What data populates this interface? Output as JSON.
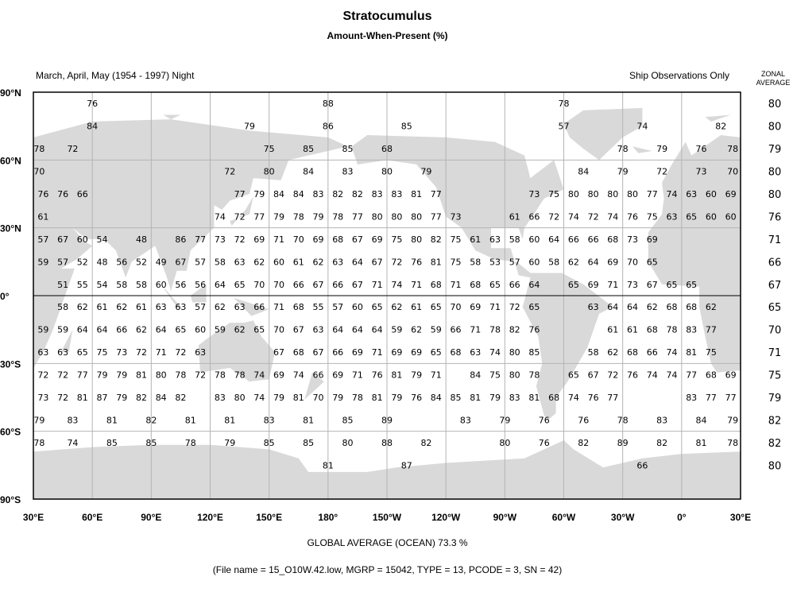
{
  "header": {
    "title": "Stratocumulus",
    "subtitle": "Amount-When-Present (%)",
    "period": "March, April, May (1954 - 1997) Night",
    "source": "Ship Observations Only",
    "zonal_header": [
      "ZONAL",
      "AVERAGE"
    ]
  },
  "axes": {
    "lat_labels": [
      {
        "lat": 90,
        "label": "90°N"
      },
      {
        "lat": 60,
        "label": "60°N"
      },
      {
        "lat": 30,
        "label": "30°N"
      },
      {
        "lat": 0,
        "label": "0°"
      },
      {
        "lat": -30,
        "label": "30°S"
      },
      {
        "lat": -60,
        "label": "60°S"
      },
      {
        "lat": -90,
        "label": "90°S"
      }
    ],
    "lon_labels": [
      "30°E",
      "60°E",
      "90°E",
      "120°E",
      "150°E",
      "180°",
      "150°W",
      "120°W",
      "90°W",
      "60°W",
      "30°W",
      "0°",
      "30°E"
    ],
    "lon_start": 30,
    "lon_step": 30,
    "grid_color": "#b4b4b4",
    "land_color": "#d9d9d9"
  },
  "cells": [
    {
      "lat": 85,
      "points": [
        [
          60,
          76
        ],
        [
          180,
          88
        ],
        [
          -60,
          78
        ]
      ]
    },
    {
      "lat": 75,
      "points": [
        [
          60,
          84
        ],
        [
          140,
          79
        ],
        [
          180,
          86
        ],
        [
          -140,
          85
        ],
        [
          -60,
          57
        ],
        [
          -20,
          74
        ],
        [
          20,
          82
        ]
      ]
    },
    {
      "lat": 65,
      "points": [
        [
          33,
          78
        ],
        [
          50,
          72
        ],
        [
          150,
          75
        ],
        [
          170,
          85
        ],
        [
          -170,
          85
        ],
        [
          -150,
          68
        ],
        [
          -30,
          78
        ],
        [
          -10,
          79
        ],
        [
          10,
          76
        ],
        [
          26,
          78
        ]
      ]
    },
    {
      "lat": 55,
      "points": [
        [
          33,
          70
        ],
        [
          130,
          72
        ],
        [
          150,
          80
        ],
        [
          170,
          84
        ],
        [
          -170,
          83
        ],
        [
          -150,
          80
        ],
        [
          -130,
          79
        ],
        [
          -50,
          84
        ],
        [
          -30,
          79
        ],
        [
          -10,
          72
        ],
        [
          10,
          73
        ],
        [
          26,
          70
        ]
      ]
    },
    {
      "lat": 45,
      "start_lon": 35,
      "step": 10,
      "values": [
        76,
        76,
        66,
        null,
        null,
        null,
        null,
        null,
        null,
        null,
        77,
        79,
        84,
        84,
        83,
        82,
        82,
        83,
        83,
        81,
        77,
        null,
        null,
        null,
        null,
        73,
        75,
        80,
        80,
        80,
        80,
        77,
        74,
        63,
        60,
        69
      ]
    },
    {
      "lat": 35,
      "start_lon": 35,
      "step": 10,
      "values": [
        61,
        null,
        null,
        null,
        null,
        null,
        null,
        null,
        null,
        74,
        72,
        77,
        79,
        78,
        79,
        78,
        77,
        80,
        80,
        80,
        77,
        73,
        null,
        null,
        61,
        66,
        72,
        74,
        72,
        74,
        76,
        75,
        63,
        65,
        60,
        60
      ]
    },
    {
      "lat": 25,
      "start_lon": 35,
      "step": 10,
      "values": [
        57,
        67,
        60,
        54,
        null,
        48,
        null,
        86,
        77,
        73,
        72,
        69,
        71,
        70,
        69,
        68,
        67,
        69,
        75,
        80,
        82,
        75,
        61,
        63,
        58,
        60,
        64,
        66,
        66,
        68,
        73,
        69,
        null,
        null,
        null,
        null
      ]
    },
    {
      "lat": 15,
      "start_lon": 35,
      "step": 10,
      "values": [
        59,
        57,
        52,
        48,
        56,
        52,
        49,
        67,
        57,
        58,
        63,
        62,
        60,
        61,
        62,
        63,
        64,
        67,
        72,
        76,
        81,
        75,
        58,
        53,
        57,
        60,
        58,
        62,
        64,
        69,
        70,
        65,
        null,
        null,
        null,
        null
      ]
    },
    {
      "lat": 5,
      "start_lon": 35,
      "step": 10,
      "values": [
        null,
        51,
        55,
        54,
        58,
        58,
        60,
        56,
        56,
        64,
        65,
        70,
        70,
        66,
        67,
        66,
        67,
        71,
        74,
        71,
        68,
        71,
        68,
        65,
        66,
        64,
        null,
        65,
        69,
        71,
        73,
        67,
        65,
        65,
        null,
        null
      ]
    },
    {
      "lat": -5,
      "start_lon": 35,
      "step": 10,
      "values": [
        null,
        58,
        62,
        61,
        62,
        61,
        63,
        63,
        57,
        62,
        63,
        66,
        71,
        68,
        55,
        57,
        60,
        65,
        62,
        61,
        65,
        70,
        69,
        71,
        72,
        65,
        null,
        null,
        63,
        64,
        64,
        62,
        68,
        68,
        62,
        null
      ]
    },
    {
      "lat": -15,
      "start_lon": 35,
      "step": 10,
      "values": [
        59,
        59,
        64,
        64,
        66,
        62,
        64,
        65,
        60,
        59,
        62,
        65,
        70,
        67,
        63,
        64,
        64,
        64,
        59,
        62,
        59,
        66,
        71,
        78,
        82,
        76,
        null,
        null,
        null,
        61,
        61,
        68,
        78,
        83,
        77,
        null
      ]
    },
    {
      "lat": -25,
      "start_lon": 35,
      "step": 10,
      "values": [
        63,
        63,
        65,
        75,
        73,
        72,
        71,
        72,
        63,
        null,
        null,
        null,
        67,
        68,
        67,
        66,
        69,
        71,
        69,
        69,
        65,
        68,
        63,
        74,
        80,
        85,
        null,
        null,
        58,
        62,
        68,
        66,
        74,
        81,
        75,
        null
      ]
    },
    {
      "lat": -35,
      "start_lon": 35,
      "step": 10,
      "values": [
        72,
        72,
        77,
        79,
        79,
        81,
        80,
        78,
        72,
        78,
        78,
        74,
        69,
        74,
        66,
        69,
        71,
        76,
        81,
        79,
        71,
        null,
        84,
        75,
        80,
        78,
        null,
        65,
        67,
        72,
        76,
        74,
        74,
        77,
        68,
        69
      ]
    },
    {
      "lat": -45,
      "start_lon": 35,
      "step": 10,
      "values": [
        73,
        72,
        81,
        87,
        79,
        82,
        84,
        82,
        null,
        83,
        80,
        74,
        79,
        81,
        70,
        79,
        78,
        81,
        79,
        76,
        84,
        85,
        81,
        79,
        83,
        81,
        68,
        74,
        76,
        77,
        null,
        null,
        null,
        83,
        77,
        77
      ]
    },
    {
      "lat": -55,
      "points": [
        [
          33,
          79
        ],
        [
          50,
          83
        ],
        [
          70,
          81
        ],
        [
          90,
          82
        ],
        [
          110,
          81
        ],
        [
          130,
          81
        ],
        [
          150,
          83
        ],
        [
          170,
          81
        ],
        [
          -170,
          85
        ],
        [
          -150,
          89
        ],
        [
          -110,
          83
        ],
        [
          -90,
          79
        ],
        [
          -70,
          76
        ],
        [
          -50,
          76
        ],
        [
          -30,
          78
        ],
        [
          -10,
          83
        ],
        [
          10,
          84
        ],
        [
          26,
          79
        ]
      ]
    },
    {
      "lat": -65,
      "points": [
        [
          33,
          78
        ],
        [
          50,
          74
        ],
        [
          70,
          85
        ],
        [
          90,
          85
        ],
        [
          110,
          78
        ],
        [
          130,
          79
        ],
        [
          150,
          85
        ],
        [
          170,
          85
        ],
        [
          -170,
          80
        ],
        [
          -150,
          88
        ],
        [
          -130,
          82
        ],
        [
          -90,
          80
        ],
        [
          -70,
          76
        ],
        [
          -50,
          82
        ],
        [
          -30,
          89
        ],
        [
          -10,
          82
        ],
        [
          10,
          81
        ],
        [
          26,
          78
        ]
      ]
    },
    {
      "lat": -75,
      "points": [
        [
          180,
          81
        ],
        [
          -140,
          87
        ],
        [
          -20,
          66
        ]
      ]
    }
  ],
  "zonal_average": [
    {
      "lat": 85,
      "value": 80
    },
    {
      "lat": 75,
      "value": 80
    },
    {
      "lat": 65,
      "value": 79
    },
    {
      "lat": 55,
      "value": 80
    },
    {
      "lat": 45,
      "value": 80
    },
    {
      "lat": 35,
      "value": 76
    },
    {
      "lat": 25,
      "value": 71
    },
    {
      "lat": 15,
      "value": 66
    },
    {
      "lat": 5,
      "value": 67
    },
    {
      "lat": -5,
      "value": 65
    },
    {
      "lat": -15,
      "value": 70
    },
    {
      "lat": -25,
      "value": 71
    },
    {
      "lat": -35,
      "value": 75
    },
    {
      "lat": -45,
      "value": 79
    },
    {
      "lat": -55,
      "value": 82
    },
    {
      "lat": -65,
      "value": 82
    },
    {
      "lat": -75,
      "value": 80
    }
  ],
  "footer": {
    "global_average": "GLOBAL AVERAGE (OCEAN)   73.3 %",
    "file_info": "(File name = 15_O10W.42.low, MGRP = 15042, TYPE = 13, PCODE = 3, SN = 42)"
  }
}
